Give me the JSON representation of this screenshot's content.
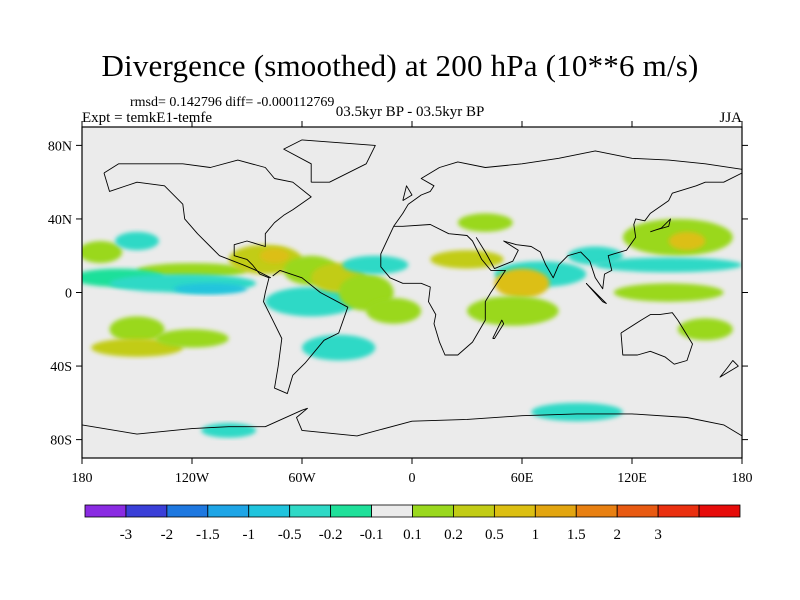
{
  "title": "Divergence (smoothed) at 200 hPa (10**6 m/s)",
  "stats": "rmsd= 0.142796 diff= -0.000112769",
  "experiment": "Expt = temkE1-temfe",
  "period": "03.5kyr BP - 03.5kyr BP",
  "season": "JJA",
  "map": {
    "lon_range": [
      -180,
      180
    ],
    "lat_range": [
      -90,
      90
    ],
    "lat_ticks": [
      {
        "value": 80,
        "label": "80N"
      },
      {
        "value": 40,
        "label": "40N"
      },
      {
        "value": 0,
        "label": "0"
      },
      {
        "value": -40,
        "label": "40S"
      },
      {
        "value": -80,
        "label": "80S"
      }
    ],
    "lon_ticks": [
      {
        "value": -180,
        "label": "180"
      },
      {
        "value": -120,
        "label": "120W"
      },
      {
        "value": -60,
        "label": "60W"
      },
      {
        "value": 0,
        "label": "0"
      },
      {
        "value": 60,
        "label": "60E"
      },
      {
        "value": 120,
        "label": "120E"
      },
      {
        "value": 180,
        "label": "180"
      }
    ],
    "background_color": "#ebebeb"
  },
  "colorbar": {
    "colors": [
      "#8a2be2",
      "#3a3fd8",
      "#1e78e0",
      "#1ea5e6",
      "#20c4dd",
      "#2fd9c6",
      "#1fe09a",
      "#ebebeb",
      "#9ad81e",
      "#c2cc16",
      "#dcbf12",
      "#e2a510",
      "#e88012",
      "#e85a12",
      "#ea3010",
      "#e60c0a"
    ],
    "labels": [
      "-3",
      "-2",
      "-1.5",
      "-1",
      "-0.5",
      "-0.2",
      "-0.1",
      "0.1",
      "0.2",
      "0.5",
      "1",
      "1.5",
      "2",
      "3"
    ]
  },
  "field_patches": [
    {
      "lon": -170,
      "lat": 22,
      "rx": 12,
      "ry": 6,
      "color": "#9ad81e"
    },
    {
      "lon": -150,
      "lat": 28,
      "rx": 12,
      "ry": 5,
      "color": "#2fd9c6"
    },
    {
      "lon": -120,
      "lat": 12,
      "rx": 30,
      "ry": 4,
      "color": "#9ad81e"
    },
    {
      "lon": -160,
      "lat": 8,
      "rx": 25,
      "ry": 5,
      "color": "#1fe09a"
    },
    {
      "lon": -125,
      "lat": 5,
      "rx": 40,
      "ry": 5,
      "color": "#2fd9c6"
    },
    {
      "lon": -110,
      "lat": 2,
      "rx": 20,
      "ry": 3,
      "color": "#20c4dd"
    },
    {
      "lon": -80,
      "lat": 18,
      "rx": 20,
      "ry": 8,
      "color": "#c2cc16"
    },
    {
      "lon": -75,
      "lat": 20,
      "rx": 8,
      "ry": 4,
      "color": "#dcbf12"
    },
    {
      "lon": -55,
      "lat": 12,
      "rx": 15,
      "ry": 8,
      "color": "#9ad81e"
    },
    {
      "lon": -55,
      "lat": -5,
      "rx": 25,
      "ry": 8,
      "color": "#2fd9c6"
    },
    {
      "lon": -40,
      "lat": 8,
      "rx": 15,
      "ry": 8,
      "color": "#c2cc16"
    },
    {
      "lon": -25,
      "lat": 0,
      "rx": 15,
      "ry": 10,
      "color": "#9ad81e"
    },
    {
      "lon": -10,
      "lat": -10,
      "rx": 15,
      "ry": 7,
      "color": "#9ad81e"
    },
    {
      "lon": -20,
      "lat": 15,
      "rx": 18,
      "ry": 5,
      "color": "#2fd9c6"
    },
    {
      "lon": 40,
      "lat": 38,
      "rx": 15,
      "ry": 5,
      "color": "#9ad81e"
    },
    {
      "lon": 30,
      "lat": 18,
      "rx": 20,
      "ry": 5,
      "color": "#c2cc16"
    },
    {
      "lon": 70,
      "lat": 10,
      "rx": 25,
      "ry": 7,
      "color": "#2fd9c6"
    },
    {
      "lon": 60,
      "lat": 5,
      "rx": 15,
      "ry": 8,
      "color": "#dcbf12"
    },
    {
      "lon": 55,
      "lat": -10,
      "rx": 25,
      "ry": 8,
      "color": "#9ad81e"
    },
    {
      "lon": 100,
      "lat": 20,
      "rx": 15,
      "ry": 5,
      "color": "#2fd9c6"
    },
    {
      "lon": 145,
      "lat": 30,
      "rx": 30,
      "ry": 10,
      "color": "#9ad81e"
    },
    {
      "lon": 150,
      "lat": 28,
      "rx": 10,
      "ry": 5,
      "color": "#dcbf12"
    },
    {
      "lon": 140,
      "lat": 15,
      "rx": 40,
      "ry": 4,
      "color": "#2fd9c6"
    },
    {
      "lon": 140,
      "lat": 0,
      "rx": 30,
      "ry": 5,
      "color": "#9ad81e"
    },
    {
      "lon": 160,
      "lat": -20,
      "rx": 15,
      "ry": 6,
      "color": "#9ad81e"
    },
    {
      "lon": -150,
      "lat": -20,
      "rx": 15,
      "ry": 7,
      "color": "#9ad81e"
    },
    {
      "lon": -150,
      "lat": -30,
      "rx": 25,
      "ry": 5,
      "color": "#c2cc16"
    },
    {
      "lon": -120,
      "lat": -25,
      "rx": 20,
      "ry": 5,
      "color": "#9ad81e"
    },
    {
      "lon": -40,
      "lat": -30,
      "rx": 20,
      "ry": 7,
      "color": "#2fd9c6"
    },
    {
      "lon": 90,
      "lat": -65,
      "rx": 25,
      "ry": 5,
      "color": "#2fd9c6"
    },
    {
      "lon": -100,
      "lat": -75,
      "rx": 15,
      "ry": 4,
      "color": "#2fd9c6"
    }
  ],
  "coastlines": [
    [
      [
        -168,
        65
      ],
      [
        -160,
        70
      ],
      [
        -140,
        70
      ],
      [
        -125,
        70
      ],
      [
        -110,
        68
      ],
      [
        -95,
        72
      ],
      [
        -80,
        68
      ],
      [
        -75,
        62
      ],
      [
        -65,
        60
      ],
      [
        -55,
        52
      ],
      [
        -65,
        45
      ],
      [
        -70,
        42
      ],
      [
        -75,
        38
      ],
      [
        -80,
        32
      ],
      [
        -80,
        25
      ],
      [
        -90,
        28
      ],
      [
        -97,
        26
      ],
      [
        -97,
        20
      ],
      [
        -90,
        18
      ],
      [
        -87,
        15
      ],
      [
        -83,
        10
      ],
      [
        -78,
        8
      ],
      [
        -80,
        0
      ],
      [
        -81,
        -5
      ],
      [
        -76,
        -15
      ],
      [
        -71,
        -25
      ],
      [
        -73,
        -40
      ],
      [
        -75,
        -52
      ],
      [
        -68,
        -55
      ],
      [
        -65,
        -45
      ],
      [
        -58,
        -38
      ],
      [
        -48,
        -26
      ],
      [
        -40,
        -22
      ],
      [
        -35,
        -8
      ],
      [
        -50,
        0
      ],
      [
        -60,
        8
      ],
      [
        -72,
        12
      ],
      [
        -76,
        9
      ]
    ],
    [
      [
        -77,
        8
      ],
      [
        -85,
        12
      ],
      [
        -92,
        15
      ],
      [
        -105,
        20
      ],
      [
        -110,
        25
      ],
      [
        -117,
        32
      ],
      [
        -124,
        40
      ],
      [
        -125,
        48
      ],
      [
        -135,
        58
      ],
      [
        -150,
        60
      ],
      [
        -165,
        55
      ],
      [
        -168,
        65
      ]
    ],
    [
      [
        -55,
        60
      ],
      [
        -45,
        60
      ],
      [
        -25,
        70
      ],
      [
        -20,
        80
      ],
      [
        -60,
        83
      ],
      [
        -70,
        78
      ],
      [
        -55,
        70
      ],
      [
        -55,
        60
      ]
    ],
    [
      [
        -10,
        36
      ],
      [
        -5,
        43
      ],
      [
        -2,
        48
      ],
      [
        5,
        53
      ],
      [
        10,
        55
      ],
      [
        12,
        58
      ],
      [
        5,
        62
      ],
      [
        15,
        68
      ],
      [
        25,
        71
      ],
      [
        40,
        68
      ],
      [
        60,
        70
      ],
      [
        80,
        73
      ],
      [
        100,
        77
      ],
      [
        120,
        73
      ],
      [
        140,
        72
      ],
      [
        160,
        70
      ],
      [
        180,
        67
      ]
    ],
    [
      [
        -10,
        36
      ],
      [
        -17,
        21
      ],
      [
        -17,
        14
      ],
      [
        -12,
        8
      ],
      [
        -5,
        5
      ],
      [
        5,
        5
      ],
      [
        10,
        3
      ],
      [
        9,
        -5
      ],
      [
        13,
        -12
      ],
      [
        12,
        -17
      ],
      [
        15,
        -27
      ],
      [
        18,
        -34
      ],
      [
        25,
        -34
      ],
      [
        33,
        -27
      ],
      [
        40,
        -15
      ],
      [
        40,
        -5
      ],
      [
        43,
        0
      ],
      [
        51,
        12
      ],
      [
        43,
        12
      ],
      [
        38,
        18
      ],
      [
        33,
        28
      ],
      [
        30,
        31
      ],
      [
        20,
        32
      ],
      [
        10,
        37
      ],
      [
        -5,
        36
      ],
      [
        -10,
        36
      ]
    ],
    [
      [
        35,
        30
      ],
      [
        40,
        22
      ],
      [
        45,
        13
      ],
      [
        55,
        17
      ],
      [
        58,
        23
      ],
      [
        50,
        28
      ],
      [
        57,
        26
      ],
      [
        65,
        25
      ],
      [
        70,
        22
      ],
      [
        73,
        15
      ],
      [
        77,
        8
      ],
      [
        80,
        15
      ],
      [
        85,
        20
      ],
      [
        92,
        22
      ],
      [
        97,
        17
      ],
      [
        100,
        8
      ],
      [
        104,
        2
      ],
      [
        105,
        10
      ],
      [
        109,
        12
      ],
      [
        107,
        20
      ],
      [
        110,
        21
      ],
      [
        117,
        23
      ],
      [
        122,
        30
      ],
      [
        121,
        37
      ],
      [
        122,
        40
      ],
      [
        127,
        39
      ],
      [
        130,
        43
      ],
      [
        140,
        50
      ],
      [
        142,
        54
      ],
      [
        155,
        58
      ],
      [
        160,
        60
      ],
      [
        170,
        60
      ],
      [
        180,
        65
      ]
    ],
    [
      [
        114,
        -22
      ],
      [
        115,
        -34
      ],
      [
        123,
        -34
      ],
      [
        130,
        -32
      ],
      [
        138,
        -35
      ],
      [
        143,
        -39
      ],
      [
        150,
        -37
      ],
      [
        153,
        -28
      ],
      [
        145,
        -15
      ],
      [
        142,
        -11
      ],
      [
        135,
        -12
      ],
      [
        130,
        -12
      ],
      [
        125,
        -15
      ],
      [
        114,
        -22
      ]
    ],
    [
      [
        95,
        5
      ],
      [
        104,
        -5
      ],
      [
        106,
        -6
      ],
      [
        100,
        0
      ],
      [
        95,
        5
      ]
    ],
    [
      [
        -180,
        -72
      ],
      [
        -150,
        -77
      ],
      [
        -120,
        -74
      ],
      [
        -100,
        -73
      ],
      [
        -80,
        -73
      ],
      [
        -60,
        -64
      ],
      [
        -57,
        -63
      ],
      [
        -63,
        -68
      ],
      [
        -60,
        -75
      ],
      [
        -30,
        -78
      ],
      [
        0,
        -70
      ],
      [
        30,
        -69
      ],
      [
        60,
        -67
      ],
      [
        90,
        -66
      ],
      [
        120,
        -66
      ],
      [
        150,
        -68
      ],
      [
        170,
        -72
      ],
      [
        180,
        -78
      ]
    ],
    [
      [
        130,
        33
      ],
      [
        136,
        35
      ],
      [
        141,
        40
      ],
      [
        140,
        36
      ],
      [
        133,
        34
      ],
      [
        130,
        33
      ]
    ],
    [
      [
        -5,
        50
      ],
      [
        -3,
        58
      ],
      [
        0,
        53
      ],
      [
        -5,
        50
      ]
    ],
    [
      [
        44,
        -25
      ],
      [
        49,
        -15
      ],
      [
        50,
        -17
      ],
      [
        45,
        -25
      ],
      [
        44,
        -25
      ]
    ],
    [
      [
        172,
        -41
      ],
      [
        175,
        -37
      ],
      [
        178,
        -40
      ],
      [
        168,
        -46
      ],
      [
        172,
        -41
      ]
    ]
  ]
}
